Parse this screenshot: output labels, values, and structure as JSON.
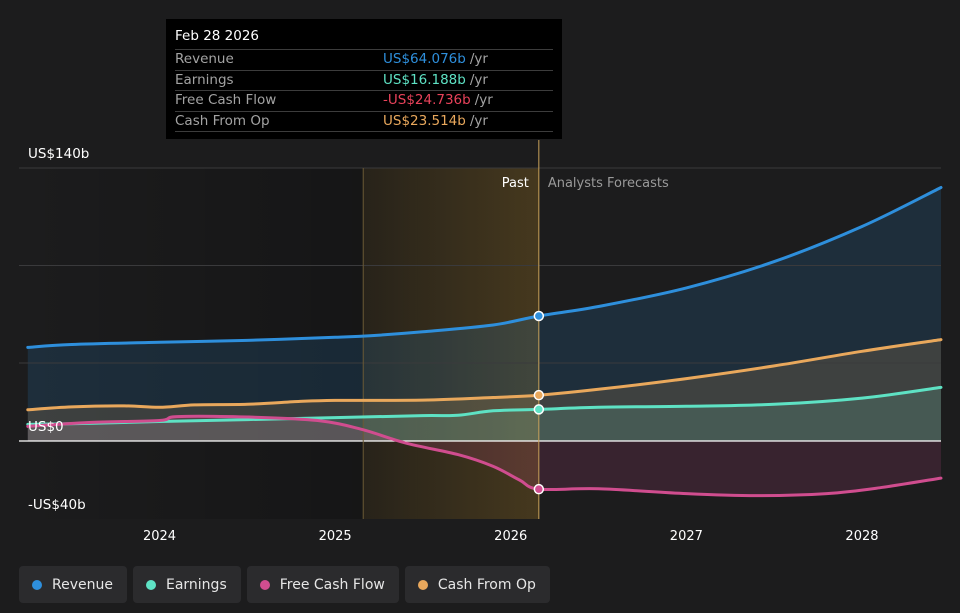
{
  "tooltip": {
    "date": "Feb 28 2026",
    "rows": [
      {
        "label": "Revenue",
        "value": "US$64.076b",
        "unit": "/yr",
        "color": "#2e8fdc"
      },
      {
        "label": "Earnings",
        "value": "US$16.188b",
        "unit": "/yr",
        "color": "#5ee2c4"
      },
      {
        "label": "Free Cash Flow",
        "value": "-US$24.736b",
        "unit": "/yr",
        "color": "#e8425a"
      },
      {
        "label": "Cash From Op",
        "value": "US$23.514b",
        "unit": "/yr",
        "color": "#e9a85c"
      }
    ]
  },
  "legend": [
    {
      "label": "Revenue",
      "color": "#2e8fdc"
    },
    {
      "label": "Earnings",
      "color": "#5ee2c4"
    },
    {
      "label": "Free Cash Flow",
      "color": "#d04d8f"
    },
    {
      "label": "Cash From Op",
      "color": "#e9a85c"
    }
  ],
  "chart_data": {
    "type": "line",
    "y_axis_labels": [
      "US$140b",
      "US$0",
      "-US$40b"
    ],
    "ylim": [
      -40,
      140
    ],
    "x_tick_labels": [
      "2024",
      "2025",
      "2026",
      "2027",
      "2028"
    ],
    "xlim": [
      2023.2,
      2028.45
    ],
    "past_label": "Past",
    "forecast_label": "Analysts Forecasts",
    "highlight_range": [
      2025.16,
      2026.16
    ],
    "present_x": 2026.16,
    "series": [
      {
        "name": "Revenue",
        "color": "#2e8fdc",
        "points": [
          [
            2023.25,
            48
          ],
          [
            2023.5,
            49.5
          ],
          [
            2024.0,
            50.6
          ],
          [
            2024.5,
            51.6
          ],
          [
            2025.0,
            53.2
          ],
          [
            2025.2,
            54
          ],
          [
            2025.5,
            56
          ],
          [
            2025.9,
            59.5
          ],
          [
            2026.16,
            64.1
          ],
          [
            2026.5,
            69
          ],
          [
            2027.0,
            78.5
          ],
          [
            2027.5,
            92
          ],
          [
            2028.0,
            110
          ],
          [
            2028.45,
            130
          ]
        ]
      },
      {
        "name": "Earnings",
        "color": "#5ee2c4",
        "points": [
          [
            2023.25,
            8.5
          ],
          [
            2023.6,
            9
          ],
          [
            2024.0,
            10
          ],
          [
            2024.5,
            11
          ],
          [
            2025.0,
            12
          ],
          [
            2025.5,
            13
          ],
          [
            2025.7,
            13.2
          ],
          [
            2025.9,
            15.5
          ],
          [
            2026.16,
            16.2
          ],
          [
            2026.5,
            17.3
          ],
          [
            2027.0,
            17.8
          ],
          [
            2027.5,
            18.8
          ],
          [
            2028.0,
            22
          ],
          [
            2028.45,
            27.5
          ]
        ]
      },
      {
        "name": "Free Cash Flow",
        "color": "#d04d8f",
        "points": [
          [
            2023.25,
            7.5
          ],
          [
            2023.6,
            9.5
          ],
          [
            2024.0,
            10.5
          ],
          [
            2024.1,
            12.5
          ],
          [
            2024.5,
            12.3
          ],
          [
            2024.9,
            10.5
          ],
          [
            2025.15,
            6
          ],
          [
            2025.4,
            -1
          ],
          [
            2025.7,
            -7
          ],
          [
            2025.9,
            -13
          ],
          [
            2026.05,
            -20
          ],
          [
            2026.16,
            -24.7
          ],
          [
            2026.5,
            -24.5
          ],
          [
            2027.0,
            -27
          ],
          [
            2027.4,
            -28
          ],
          [
            2027.8,
            -27
          ],
          [
            2028.1,
            -24
          ],
          [
            2028.45,
            -19
          ]
        ]
      },
      {
        "name": "Cash From Op",
        "color": "#e9a85c",
        "points": [
          [
            2023.25,
            16
          ],
          [
            2023.5,
            17.5
          ],
          [
            2023.8,
            18
          ],
          [
            2024.0,
            17.3
          ],
          [
            2024.2,
            18.5
          ],
          [
            2024.5,
            18.8
          ],
          [
            2024.8,
            20.3
          ],
          [
            2025.0,
            20.8
          ],
          [
            2025.5,
            21
          ],
          [
            2025.9,
            22.3
          ],
          [
            2026.16,
            23.5
          ],
          [
            2026.5,
            26.5
          ],
          [
            2027.0,
            32
          ],
          [
            2027.5,
            38.5
          ],
          [
            2028.0,
            46
          ],
          [
            2028.45,
            52
          ]
        ]
      }
    ]
  }
}
